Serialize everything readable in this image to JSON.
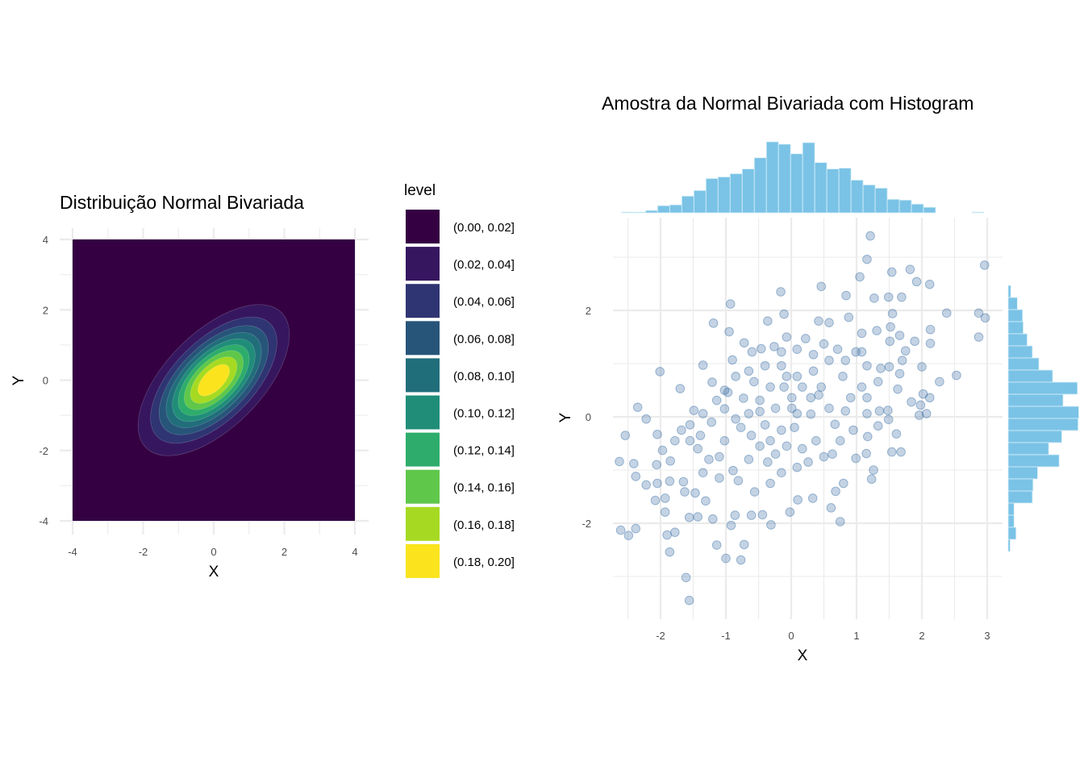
{
  "chart_data": [
    {
      "type": "heatmap",
      "subtype": "filled-contour",
      "title": "Distribuição Normal Bivariada",
      "xlabel": "X",
      "ylabel": "Y",
      "xlim": [
        -4,
        4
      ],
      "ylim": [
        -4,
        4
      ],
      "xticks": [
        "-4",
        "-2",
        "0",
        "2",
        "4"
      ],
      "yticks": [
        "-4",
        "-2",
        "0",
        "2",
        "4"
      ],
      "distribution": {
        "mean": [
          0,
          0
        ],
        "sd": [
          1,
          1
        ],
        "rho": 0.6
      },
      "grid": true,
      "legend": {
        "title": "level",
        "position": "right",
        "levels": [
          {
            "label": "(0.00, 0.02]",
            "color": "#340042"
          },
          {
            "label": "(0.02, 0.04]",
            "color": "#36175f"
          },
          {
            "label": "(0.04, 0.06]",
            "color": "#2f3572"
          },
          {
            "label": "(0.06, 0.08]",
            "color": "#27557a"
          },
          {
            "label": "(0.08, 0.10]",
            "color": "#216e7b"
          },
          {
            "label": "(0.10, 0.12]",
            "color": "#208d79"
          },
          {
            "label": "(0.12, 0.14]",
            "color": "#2eac6b"
          },
          {
            "label": "(0.14, 0.16]",
            "color": "#5fc74a"
          },
          {
            "label": "(0.16, 0.18]",
            "color": "#a6da22"
          },
          {
            "label": "(0.18, 0.20]",
            "color": "#fbe31e"
          }
        ],
        "breaks": [
          0.02,
          0.04,
          0.06,
          0.08,
          0.1,
          0.12,
          0.14,
          0.16,
          0.18
        ]
      }
    },
    {
      "type": "scatter",
      "title": "Amostra da Normal Bivariada com Histogram",
      "xlabel": "X",
      "ylabel": "Y",
      "xlim": [
        -2.7,
        3.25
      ],
      "ylim": [
        -3.75,
        3.75
      ],
      "xticks": [
        "-2",
        "-1",
        "0",
        "1",
        "2",
        "3"
      ],
      "yticks": [
        "-2",
        "0",
        "2"
      ],
      "grid": true,
      "point_color": "#3a6ea5",
      "point_alpha": 0.3,
      "points": [
        [
          1.21,
          3.4
        ],
        [
          1.16,
          2.96
        ],
        [
          2.96,
          2.85
        ],
        [
          1.54,
          2.72
        ],
        [
          1.82,
          2.77
        ],
        [
          1.05,
          2.63
        ],
        [
          0.46,
          2.45
        ],
        [
          -0.16,
          2.35
        ],
        [
          -0.93,
          2.12
        ],
        [
          -1.19,
          1.76
        ],
        [
          -0.95,
          1.6
        ],
        [
          1.92,
          2.54
        ],
        [
          2.12,
          2.49
        ],
        [
          2.38,
          1.95
        ],
        [
          2.87,
          1.95
        ],
        [
          2.97,
          1.86
        ],
        [
          2.87,
          1.5
        ],
        [
          2.53,
          0.78
        ],
        [
          2.27,
          0.66
        ],
        [
          -2.01,
          0.85
        ],
        [
          -1.7,
          0.53
        ],
        [
          -2.35,
          0.18
        ],
        [
          -2.22,
          -0.04
        ],
        [
          -2.54,
          -0.35
        ],
        [
          -2.63,
          -0.84
        ],
        [
          -2.41,
          -0.88
        ],
        [
          -2.38,
          -1.12
        ],
        [
          -2.22,
          -1.28
        ],
        [
          -2.08,
          -1.57
        ],
        [
          -1.93,
          -1.53
        ],
        [
          -1.93,
          -1.79
        ],
        [
          -2.61,
          -2.13
        ],
        [
          -2.49,
          -2.23
        ],
        [
          -2.38,
          -2.1
        ],
        [
          -1.9,
          -2.22
        ],
        [
          -1.86,
          -2.54
        ],
        [
          -1.78,
          -2.17
        ],
        [
          -1.61,
          -3.02
        ],
        [
          -1.56,
          -3.45
        ],
        [
          -1.0,
          -2.66
        ],
        [
          -0.77,
          -2.69
        ],
        [
          -0.72,
          -2.4
        ],
        [
          -1.14,
          -2.41
        ],
        [
          -1.56,
          -1.89
        ],
        [
          -1.43,
          -1.88
        ],
        [
          0.75,
          -1.97
        ],
        [
          0.61,
          -1.71
        ],
        [
          1.23,
          -1.17
        ],
        [
          1.26,
          -1.0
        ],
        [
          1.68,
          -0.66
        ],
        [
          1.54,
          -0.66
        ],
        [
          1.61,
          -0.32
        ],
        [
          1.96,
          0.03
        ],
        [
          2.07,
          0.06
        ],
        [
          2.02,
          0.43
        ],
        [
          2.12,
          0.36
        ],
        [
          1.98,
          0.22
        ],
        [
          1.84,
          0.28
        ],
        [
          2.0,
          0.94
        ],
        [
          1.89,
          1.42
        ],
        [
          2.13,
          1.38
        ],
        [
          2.13,
          1.64
        ],
        [
          1.69,
          2.25
        ],
        [
          1.49,
          2.25
        ],
        [
          1.27,
          2.23
        ],
        [
          0.84,
          2.28
        ],
        [
          -0.11,
          1.93
        ],
        [
          -0.36,
          1.8
        ],
        [
          -0.72,
          1.39
        ],
        [
          -0.6,
          1.22
        ],
        [
          -0.9,
          1.07
        ],
        [
          -1.35,
          0.97
        ],
        [
          -0.46,
          1.28
        ],
        [
          -1.21,
          0.65
        ],
        [
          -1.02,
          0.5
        ],
        [
          -1.49,
          0.12
        ],
        [
          -2.05,
          -0.33
        ],
        [
          -1.97,
          -0.63
        ],
        [
          -1.78,
          -0.45
        ],
        [
          -2.06,
          -0.9
        ],
        [
          -1.85,
          -0.83
        ],
        [
          -2.05,
          -1.25
        ],
        [
          -1.86,
          -1.21
        ],
        [
          -1.65,
          -1.22
        ],
        [
          -1.63,
          -1.41
        ],
        [
          -1.47,
          -1.43
        ],
        [
          -1.31,
          -1.58
        ],
        [
          -1.2,
          -1.92
        ],
        [
          -0.92,
          -2.04
        ],
        [
          -0.86,
          -1.85
        ],
        [
          -0.61,
          -1.85
        ],
        [
          -0.44,
          -1.84
        ],
        [
          -0.31,
          -2.03
        ],
        [
          -0.02,
          -1.79
        ],
        [
          0.33,
          -1.53
        ],
        [
          0.1,
          -1.56
        ],
        [
          0.68,
          -1.4
        ],
        [
          0.8,
          -1.25
        ],
        [
          0.63,
          -0.7
        ],
        [
          0.99,
          -0.78
        ],
        [
          1.15,
          -0.69
        ],
        [
          1.17,
          -0.37
        ],
        [
          1.33,
          -0.17
        ],
        [
          1.49,
          -0.05
        ],
        [
          1.48,
          0.12
        ],
        [
          1.35,
          0.11
        ],
        [
          1.63,
          0.52
        ],
        [
          1.5,
          0.94
        ],
        [
          1.66,
          0.81
        ],
        [
          1.75,
          1.24
        ],
        [
          1.7,
          1.06
        ],
        [
          1.51,
          1.42
        ],
        [
          1.66,
          1.53
        ],
        [
          1.52,
          1.69
        ],
        [
          1.31,
          1.62
        ],
        [
          1.55,
          1.94
        ],
        [
          1.08,
          1.57
        ],
        [
          0.88,
          1.87
        ],
        [
          0.58,
          1.77
        ],
        [
          0.42,
          1.8
        ],
        [
          0.22,
          1.47
        ],
        [
          -0.07,
          1.5
        ],
        [
          -0.26,
          1.32
        ],
        [
          -0.32,
          0.56
        ],
        [
          -0.11,
          0.56
        ],
        [
          0.09,
          0.76
        ],
        [
          0.34,
          0.86
        ],
        [
          0.42,
          0.41
        ],
        [
          0.3,
          0.05
        ],
        [
          0.01,
          0.16
        ],
        [
          -0.15,
          -0.25
        ],
        [
          0.05,
          -0.2
        ],
        [
          -0.48,
          0.1
        ],
        [
          -0.48,
          0.31
        ],
        [
          -0.65,
          0.06
        ],
        [
          -0.77,
          -0.2
        ],
        [
          -0.85,
          -0.04
        ],
        [
          -1.02,
          -0.45
        ],
        [
          -1.1,
          -0.75
        ],
        [
          -0.89,
          -1.01
        ],
        [
          -0.65,
          -0.8
        ],
        [
          -0.36,
          -0.85
        ],
        [
          -0.24,
          -0.7
        ],
        [
          0.09,
          -0.95
        ],
        [
          0.26,
          -0.85
        ],
        [
          0.38,
          -0.45
        ],
        [
          0.67,
          -0.14
        ],
        [
          0.83,
          0.11
        ],
        [
          0.91,
          0.36
        ],
        [
          1.08,
          0.56
        ],
        [
          0.79,
          0.76
        ],
        [
          0.58,
          1.06
        ],
        [
          0.83,
          1.06
        ],
        [
          0.99,
          1.22
        ],
        [
          0.71,
          1.27
        ],
        [
          0.09,
          1.27
        ],
        [
          -0.15,
          0.96
        ],
        [
          -0.4,
          0.96
        ],
        [
          -0.57,
          0.66
        ],
        [
          -0.73,
          0.35
        ],
        [
          -1.02,
          0.15
        ],
        [
          -1.22,
          -0.1
        ],
        [
          -1.39,
          -0.35
        ],
        [
          -1.55,
          -0.45
        ],
        [
          -1.68,
          -0.25
        ],
        [
          -1.43,
          -0.6
        ],
        [
          -1.26,
          -0.8
        ],
        [
          -1.35,
          -1.05
        ],
        [
          -1.1,
          -1.15
        ],
        [
          -0.81,
          -1.2
        ],
        [
          -0.56,
          -1.41
        ],
        [
          -0.32,
          -1.25
        ],
        [
          -0.15,
          -1.05
        ],
        [
          -0.48,
          -0.55
        ],
        [
          -0.32,
          -0.45
        ],
        [
          -0.07,
          -0.55
        ],
        [
          0.17,
          -0.6
        ],
        [
          0.5,
          -0.75
        ],
        [
          0.75,
          -0.45
        ],
        [
          0.95,
          -0.25
        ],
        [
          1.16,
          0.06
        ],
        [
          1.16,
          0.36
        ],
        [
          1.33,
          0.66
        ],
        [
          1.37,
          0.91
        ],
        [
          1.16,
          0.96
        ],
        [
          1.08,
          1.22
        ],
        [
          0.5,
          1.37
        ],
        [
          0.34,
          1.17
        ],
        [
          -0.15,
          1.22
        ],
        [
          -0.65,
          0.86
        ],
        [
          -0.85,
          0.76
        ],
        [
          -0.97,
          0.46
        ],
        [
          -1.14,
          0.31
        ],
        [
          -1.35,
          0.06
        ],
        [
          -1.55,
          -0.15
        ],
        [
          0.01,
          0.36
        ],
        [
          0.17,
          0.56
        ],
        [
          -0.24,
          0.16
        ],
        [
          -0.4,
          -0.15
        ],
        [
          -0.61,
          -0.35
        ],
        [
          0.3,
          0.36
        ],
        [
          0.46,
          0.56
        ],
        [
          0.58,
          0.16
        ],
        [
          0.09,
          0.06
        ],
        [
          -0.07,
          0.76
        ]
      ]
    },
    {
      "type": "bar",
      "role": "marginal-histogram-x",
      "bar_color": "#7ac3e6",
      "bin_start": -2.6,
      "bin_width": 0.185,
      "counts": [
        1,
        1,
        3,
        9,
        10,
        21,
        28,
        43,
        45,
        49,
        55,
        69,
        89,
        86,
        74,
        88,
        63,
        55,
        56,
        41,
        35,
        31,
        17,
        16,
        11,
        7,
        0,
        0,
        0,
        1
      ]
    },
    {
      "type": "bar",
      "orientation": "horizontal",
      "role": "marginal-histogram-y",
      "bar_color": "#7ac3e6",
      "order": "top-to-bottom",
      "counts": [
        4,
        14,
        22,
        23,
        29,
        37,
        47,
        68,
        106,
        84,
        108,
        107,
        82,
        62,
        78,
        45,
        38,
        37,
        9,
        9,
        12,
        3
      ]
    }
  ]
}
